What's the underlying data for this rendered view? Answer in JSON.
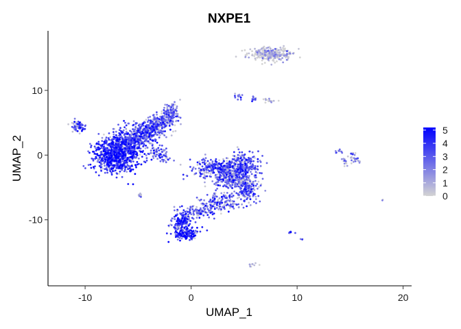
{
  "chart_data": {
    "type": "scatter",
    "title": "NXPE1",
    "xlabel": "UMAP_1",
    "ylabel": "UMAP_2",
    "xlim": [
      -13.5,
      20.8
    ],
    "ylim": [
      -20.2,
      19.2
    ],
    "xticks": [
      -10,
      0,
      10,
      20
    ],
    "yticks": [
      -10,
      0,
      10
    ],
    "grid": false,
    "legend": {
      "position": "right",
      "type": "colorbar",
      "ticks": [
        0,
        1,
        2,
        3,
        4,
        5
      ],
      "color_low": "#d3d3d3",
      "color_high": "#0000ff",
      "range": [
        0,
        5.2
      ]
    },
    "clusters": [
      {
        "cx": -10.7,
        "cy": 4.5,
        "sx": 0.35,
        "sy": 0.4,
        "n": 60,
        "expr": 3.2
      },
      {
        "cx": -7.0,
        "cy": 0.0,
        "sx": 1.1,
        "sy": 1.3,
        "n": 850,
        "expr": 3.8
      },
      {
        "cx": -5.5,
        "cy": 2.4,
        "sx": 0.9,
        "sy": 0.8,
        "n": 300,
        "expr": 3.2
      },
      {
        "cx": -4.2,
        "cy": 3.8,
        "sx": 0.7,
        "sy": 0.7,
        "n": 220,
        "expr": 2.9
      },
      {
        "cx": -3.0,
        "cy": 5.0,
        "sx": 0.6,
        "sy": 0.7,
        "n": 160,
        "expr": 2.6
      },
      {
        "cx": -1.9,
        "cy": 6.5,
        "sx": 0.4,
        "sy": 0.9,
        "n": 130,
        "expr": 2.3
      },
      {
        "cx": -3.0,
        "cy": 0.5,
        "sx": 0.5,
        "sy": 0.6,
        "n": 50,
        "expr": 2.8
      },
      {
        "cx": -2.6,
        "cy": -0.5,
        "sx": 0.4,
        "sy": 0.3,
        "n": 20,
        "expr": 3.0
      },
      {
        "cx": 7.5,
        "cy": 15.6,
        "sx": 1.0,
        "sy": 0.5,
        "n": 300,
        "expr": 0.1
      },
      {
        "cx": 4.5,
        "cy": 9.0,
        "sx": 0.3,
        "sy": 0.2,
        "n": 12,
        "expr": 2.5
      },
      {
        "cx": 5.9,
        "cy": 8.5,
        "sx": 0.2,
        "sy": 0.2,
        "n": 12,
        "expr": 2.5
      },
      {
        "cx": 7.5,
        "cy": 8.6,
        "sx": 0.35,
        "sy": 0.2,
        "n": 14,
        "expr": 0.5
      },
      {
        "cx": 2.8,
        "cy": -2.0,
        "sx": 1.4,
        "sy": 0.7,
        "n": 330,
        "expr": 3.0
      },
      {
        "cx": 4.0,
        "cy": -3.7,
        "sx": 1.1,
        "sy": 0.8,
        "n": 270,
        "expr": 2.4
      },
      {
        "cx": 5.0,
        "cy": -1.2,
        "sx": 0.7,
        "sy": 0.9,
        "n": 160,
        "expr": 3.0
      },
      {
        "cx": 5.2,
        "cy": -5.2,
        "sx": 0.6,
        "sy": 0.9,
        "n": 160,
        "expr": 2.7
      },
      {
        "cx": 2.7,
        "cy": -7.3,
        "sx": 1.0,
        "sy": 0.7,
        "n": 140,
        "expr": 2.5
      },
      {
        "cx": 0.5,
        "cy": -8.7,
        "sx": 0.8,
        "sy": 0.5,
        "n": 100,
        "expr": 2.6
      },
      {
        "cx": -0.9,
        "cy": -10.3,
        "sx": 0.5,
        "sy": 0.9,
        "n": 160,
        "expr": 3.5
      },
      {
        "cx": -0.5,
        "cy": -12.1,
        "sx": 0.6,
        "sy": 0.5,
        "n": 130,
        "expr": 3.7
      },
      {
        "cx": -4.8,
        "cy": -6.2,
        "sx": 0.1,
        "sy": 0.2,
        "n": 8,
        "expr": 2.0
      },
      {
        "cx": 14.0,
        "cy": 0.5,
        "sx": 0.2,
        "sy": 0.15,
        "n": 10,
        "expr": 2.0
      },
      {
        "cx": 15.0,
        "cy": -0.8,
        "sx": 0.6,
        "sy": 0.35,
        "n": 30,
        "expr": 1.5
      },
      {
        "cx": 15.3,
        "cy": 0.2,
        "sx": 0.15,
        "sy": 0.15,
        "n": 8,
        "expr": 2.5
      },
      {
        "cx": 9.3,
        "cy": -12.0,
        "sx": 0.2,
        "sy": 0.15,
        "n": 6,
        "expr": 3.0
      },
      {
        "cx": 10.4,
        "cy": -13.0,
        "sx": 0.1,
        "sy": 0.1,
        "n": 3,
        "expr": 3.0
      },
      {
        "cx": 5.9,
        "cy": -17.0,
        "sx": 0.2,
        "sy": 0.15,
        "n": 10,
        "expr": 0.2
      },
      {
        "cx": 18.0,
        "cy": -7.0,
        "sx": 0.05,
        "sy": 0.05,
        "n": 2,
        "expr": 0.3
      }
    ]
  }
}
